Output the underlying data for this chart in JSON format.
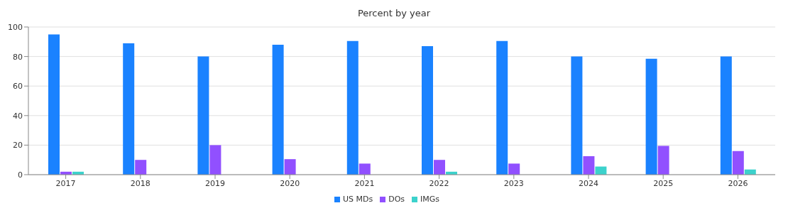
{
  "chart_data": {
    "type": "bar",
    "title": "Percent by year",
    "categories": [
      "2017",
      "2018",
      "2019",
      "2020",
      "2021",
      "2022",
      "2023",
      "2024",
      "2025",
      "2026"
    ],
    "series": [
      {
        "name": "US MDs",
        "color": "#1a82ff",
        "values": [
          95,
          89,
          80,
          88,
          90.5,
          87,
          90.5,
          80,
          78.5,
          80
        ]
      },
      {
        "name": "DOs",
        "color": "#9150ff",
        "values": [
          2,
          10,
          20,
          10.5,
          7.5,
          10,
          7.5,
          12.5,
          19.5,
          16
        ]
      },
      {
        "name": "IMGs",
        "color": "#3cd2cc",
        "values": [
          2,
          null,
          null,
          null,
          null,
          2,
          null,
          5.5,
          null,
          3.5
        ]
      }
    ],
    "ylim": [
      0,
      100
    ],
    "yticks": [
      0,
      20,
      40,
      60,
      80,
      100
    ],
    "grid": "y",
    "legend": "bottom"
  }
}
